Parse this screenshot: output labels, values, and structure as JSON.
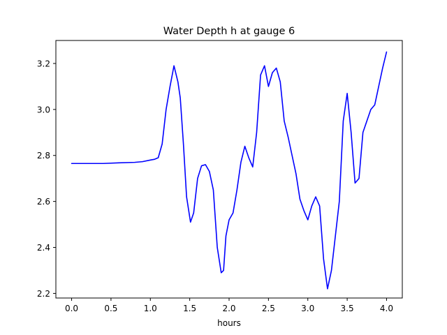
{
  "chart_data": {
    "type": "line",
    "title": "Water Depth h at gauge 6",
    "xlabel": "hours",
    "ylabel": "",
    "xlim": [
      -0.2,
      4.2
    ],
    "ylim": [
      2.18,
      3.3
    ],
    "xticks": [
      0.0,
      0.5,
      1.0,
      1.5,
      2.0,
      2.5,
      3.0,
      3.5,
      4.0
    ],
    "xtick_labels": [
      "0.0",
      "0.5",
      "1.0",
      "1.5",
      "2.0",
      "2.5",
      "3.0",
      "3.5",
      "4.0"
    ],
    "yticks": [
      2.2,
      2.4,
      2.6,
      2.8,
      3.0,
      3.2
    ],
    "ytick_labels": [
      "2.2",
      "2.4",
      "2.6",
      "2.8",
      "3.0",
      "3.2"
    ],
    "grid": false,
    "legend": "none",
    "series": [
      {
        "color": "#0000ff",
        "x": [
          0.0,
          0.2,
          0.4,
          0.6,
          0.8,
          0.9,
          1.0,
          1.05,
          1.1,
          1.15,
          1.2,
          1.25,
          1.3,
          1.35,
          1.38,
          1.42,
          1.46,
          1.51,
          1.55,
          1.6,
          1.65,
          1.7,
          1.75,
          1.8,
          1.85,
          1.9,
          1.93,
          1.96,
          2.0,
          2.05,
          2.1,
          2.15,
          2.2,
          2.25,
          2.3,
          2.35,
          2.4,
          2.45,
          2.5,
          2.55,
          2.6,
          2.65,
          2.7,
          2.75,
          2.8,
          2.85,
          2.9,
          2.95,
          3.0,
          3.05,
          3.1,
          3.15,
          3.2,
          3.25,
          3.3,
          3.35,
          3.4,
          3.45,
          3.5,
          3.55,
          3.6,
          3.65,
          3.7,
          3.75,
          3.8,
          3.85,
          3.9,
          3.95,
          4.0
        ],
        "y": [
          2.765,
          2.765,
          2.765,
          2.768,
          2.77,
          2.773,
          2.78,
          2.783,
          2.79,
          2.85,
          3.0,
          3.1,
          3.19,
          3.12,
          3.05,
          2.85,
          2.62,
          2.51,
          2.55,
          2.7,
          2.755,
          2.76,
          2.73,
          2.65,
          2.4,
          2.29,
          2.3,
          2.45,
          2.52,
          2.55,
          2.65,
          2.77,
          2.84,
          2.79,
          2.75,
          2.9,
          3.15,
          3.19,
          3.1,
          3.16,
          3.18,
          3.12,
          2.95,
          2.88,
          2.8,
          2.72,
          2.61,
          2.56,
          2.52,
          2.58,
          2.62,
          2.58,
          2.35,
          2.22,
          2.3,
          2.45,
          2.6,
          2.95,
          3.07,
          2.9,
          2.68,
          2.7,
          2.9,
          2.95,
          3.0,
          3.02,
          3.1,
          3.18,
          3.25
        ]
      }
    ]
  }
}
